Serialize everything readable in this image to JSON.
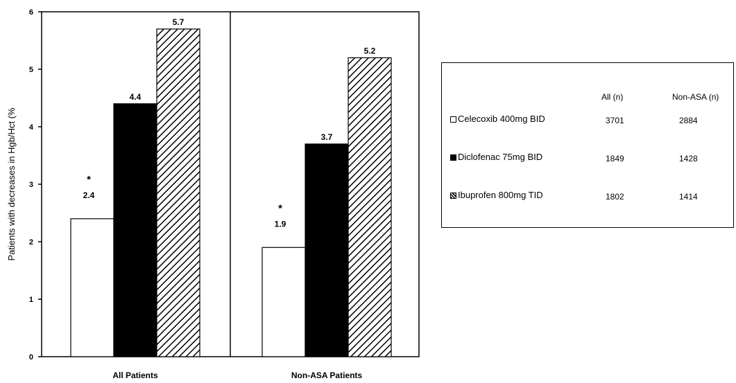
{
  "chart_data": {
    "type": "bar",
    "categories": [
      "All Patients",
      "Non-ASA Patients"
    ],
    "series": [
      {
        "name": "Celecoxib 400mg BID",
        "values": [
          2.4,
          1.9
        ],
        "color": "#ffffff",
        "pattern": "none",
        "n_all": "3701",
        "n_nonasa": "2884"
      },
      {
        "name": "Diclofenac 75mg BID",
        "values": [
          4.4,
          3.7
        ],
        "color": "#000000",
        "pattern": "solid",
        "n_all": "1849",
        "n_nonasa": "1428"
      },
      {
        "name": "Ibuprofen 800mg TID",
        "values": [
          5.7,
          5.2
        ],
        "color": "#ffffff",
        "pattern": "diagonal-hatch",
        "n_all": "1802",
        "n_nonasa": "1414"
      }
    ],
    "data_labels": [
      [
        "2.4",
        "4.4",
        "5.7"
      ],
      [
        "1.9",
        "3.7",
        "5.2"
      ]
    ],
    "significance_marker": "*",
    "significance_series": 0,
    "ylabel": "Patients with decreases in Hgb/Hct (%",
    "xlabel": "",
    "ylim": [
      0,
      6
    ],
    "yticks": [
      "0",
      "1",
      "2",
      "3",
      "4",
      "5",
      "6"
    ],
    "grid": false,
    "legend": {
      "placement": "right",
      "columns": [
        "All (n)",
        "Non-ASA (n)"
      ]
    }
  }
}
